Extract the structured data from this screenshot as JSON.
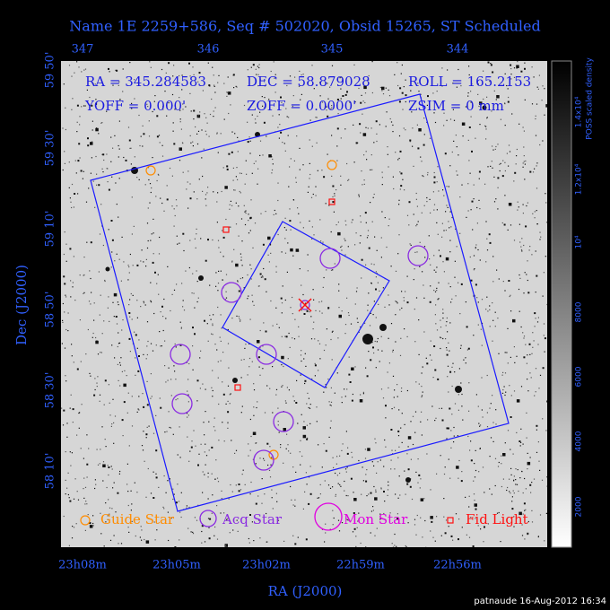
{
  "header": {
    "title": "Name 1E 2259+586, Seq # 502020, Obsid 15265, ST Scheduled"
  },
  "info": {
    "row1": [
      "RA = 345.284583",
      "DEC = 58.879028",
      "ROLL = 165.2153"
    ],
    "row2": [
      "YOFF =   0.000'",
      "ZOFF =  0.0000'",
      "ZSIM = 0 mm"
    ]
  },
  "axes": {
    "top_ticks": [
      "347",
      "346",
      "345",
      "344"
    ],
    "left_ticks": [
      "59 50'",
      "59 30'",
      "59 10'",
      "58 50'",
      "58 30'",
      "58 10'"
    ],
    "bottom_ticks": [
      "23h08m",
      "23h05m",
      "23h02m",
      "22h59m",
      "22h56m"
    ],
    "x_label": "RA (J2000)",
    "y_label": "Dec (J2000)"
  },
  "colorbar": {
    "ticks": [
      "2000",
      "4000",
      "6000",
      "8000",
      "10⁴",
      "1.2x10⁴",
      "1.4x10⁴"
    ],
    "label": "POSS scaled density"
  },
  "legend": [
    "Guide Star",
    "Acq Star",
    "Mon Star",
    "Fid Light"
  ],
  "footer": "patnaude 16-Aug-2012 16:34"
}
